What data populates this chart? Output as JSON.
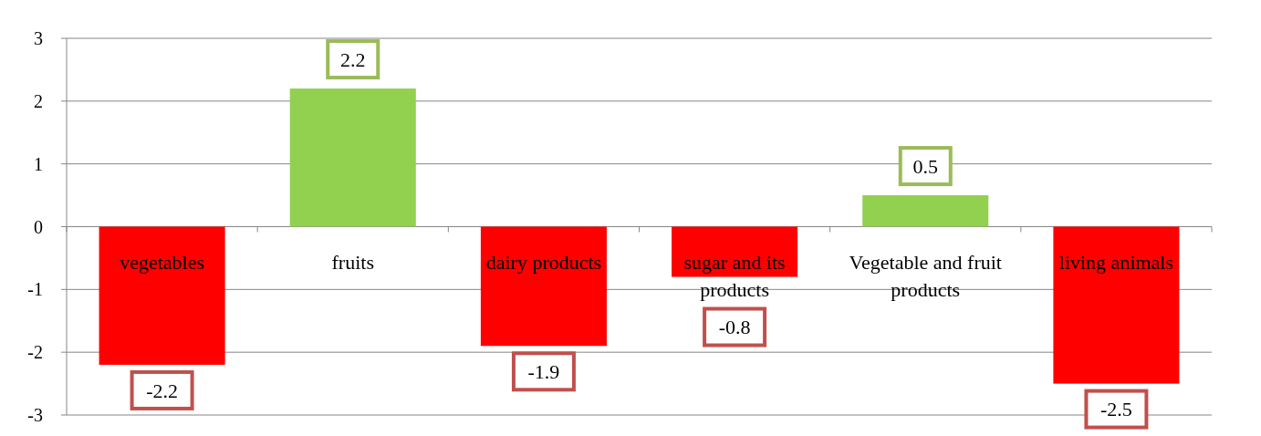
{
  "chart_data": {
    "type": "bar",
    "categories": [
      "vegetables",
      "fruits",
      "dairy products",
      "sugar and its products",
      "Vegetable and fruit products",
      "living animals"
    ],
    "values": [
      -2.2,
      2.2,
      -1.9,
      -0.8,
      0.5,
      -2.5
    ],
    "colors": [
      "#ff0000",
      "#92d050",
      "#ff0000",
      "#ff0000",
      "#92d050",
      "#ff0000"
    ],
    "ylim": [
      -3,
      3
    ],
    "yticks": [
      -3,
      -2,
      -1,
      0,
      1,
      2,
      3
    ],
    "grid": "y",
    "data_labels": true
  }
}
